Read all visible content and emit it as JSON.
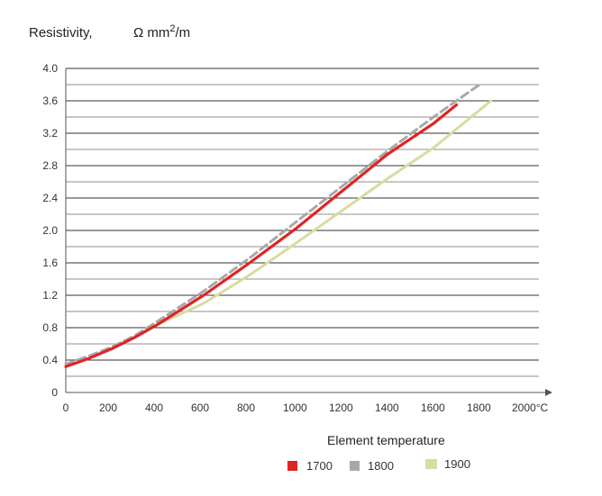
{
  "chart_data": {
    "type": "line",
    "ylabel_left": "Resistivity,",
    "ylabel_right": "Ω mm",
    "ylabel_exp": "2",
    "ylabel_tail": "/m",
    "xlabel": "Element temperature",
    "x_ticks": [
      "0",
      "200",
      "400",
      "600",
      "800",
      "1000",
      "1200",
      "1400",
      "1600",
      "1800",
      "2000°C"
    ],
    "y_ticks": [
      "0",
      "0.4",
      "0.8",
      "1.2",
      "1.6",
      "2.0",
      "2.4",
      "2.8",
      "3.2",
      "3.6",
      "4.0"
    ],
    "xlim": [
      0,
      2000
    ],
    "ylim": [
      0,
      4.0
    ],
    "grid": true,
    "legend_position": "bottom",
    "series": [
      {
        "name": "1700",
        "color": "#e02424",
        "style": "solid",
        "x": [
          0,
          100,
          200,
          300,
          400,
          600,
          800,
          1000,
          1200,
          1400,
          1600,
          1700
        ],
        "y": [
          0.32,
          0.42,
          0.54,
          0.68,
          0.84,
          1.2,
          1.6,
          2.02,
          2.48,
          2.94,
          3.32,
          3.55
        ]
      },
      {
        "name": "1800",
        "color": "#a8a8a8",
        "style": "dashed",
        "x": [
          0,
          100,
          200,
          300,
          400,
          600,
          800,
          1000,
          1200,
          1400,
          1600,
          1800
        ],
        "y": [
          0.35,
          0.45,
          0.56,
          0.7,
          0.88,
          1.25,
          1.66,
          2.1,
          2.54,
          2.98,
          3.4,
          3.8
        ]
      },
      {
        "name": "1900",
        "color": "#d8dca0",
        "style": "solid",
        "x": [
          400,
          600,
          800,
          1000,
          1200,
          1400,
          1600,
          1850
        ],
        "y": [
          0.84,
          1.1,
          1.45,
          1.84,
          2.24,
          2.64,
          3.02,
          3.6
        ]
      }
    ]
  }
}
